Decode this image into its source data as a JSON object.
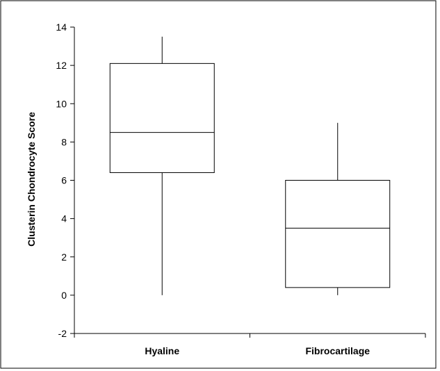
{
  "chart_data": {
    "type": "box",
    "title": "",
    "xlabel": "",
    "ylabel": "Clusterin Chondrocyte Score",
    "ylim": [
      -2,
      14
    ],
    "yticks": [
      -2,
      0,
      2,
      4,
      6,
      8,
      10,
      12,
      14
    ],
    "grid": false,
    "legend": "none",
    "categories": [
      "Hyaline",
      "Fibrocartilage"
    ],
    "boxes": [
      {
        "category": "Hyaline",
        "min": 0,
        "q1": 6.4,
        "median": 8.5,
        "q3": 12.1,
        "max": 13.5
      },
      {
        "category": "Fibrocartilage",
        "min": 0,
        "q1": 0.4,
        "median": 3.5,
        "q3": 6.0,
        "max": 9.0
      }
    ]
  }
}
